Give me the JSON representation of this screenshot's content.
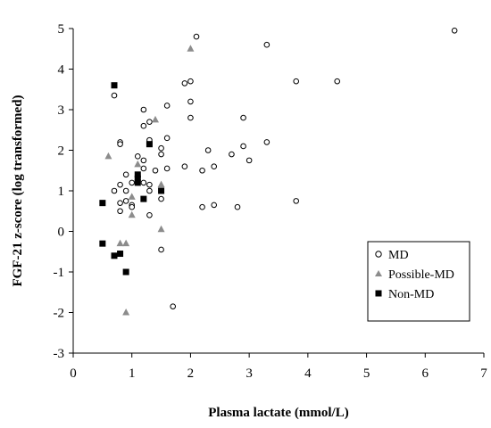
{
  "chart_data": {
    "type": "scatter",
    "xlabel": "Plasma lactate (mmol/L)",
    "ylabel": "FGF-21 z-score (log transformed)",
    "xlim": [
      0,
      7
    ],
    "ylim": [
      -3,
      5
    ],
    "x_ticks": [
      "0",
      "1",
      "2",
      "3",
      "4",
      "5",
      "6",
      "7"
    ],
    "y_ticks": [
      "-3",
      "-2",
      "-1",
      "0",
      "1",
      "2",
      "3",
      "4",
      "5"
    ],
    "grid": false,
    "legend_position": "bottom-right",
    "series": [
      {
        "name": "MD",
        "marker": "open-circle",
        "color": "#000000",
        "points": [
          [
            0.7,
            3.35
          ],
          [
            0.7,
            1.0
          ],
          [
            0.8,
            2.2
          ],
          [
            0.8,
            2.15
          ],
          [
            0.8,
            1.15
          ],
          [
            0.8,
            0.7
          ],
          [
            0.8,
            0.5
          ],
          [
            0.9,
            1.4
          ],
          [
            0.9,
            1.0
          ],
          [
            0.9,
            0.75
          ],
          [
            1.0,
            1.2
          ],
          [
            1.0,
            0.65
          ],
          [
            1.0,
            0.6
          ],
          [
            1.1,
            1.85
          ],
          [
            1.2,
            3.0
          ],
          [
            1.2,
            2.6
          ],
          [
            1.2,
            1.75
          ],
          [
            1.2,
            1.55
          ],
          [
            1.2,
            1.2
          ],
          [
            1.3,
            2.7
          ],
          [
            1.3,
            2.25
          ],
          [
            1.3,
            1.15
          ],
          [
            1.3,
            1.0
          ],
          [
            1.3,
            0.4
          ],
          [
            1.4,
            1.5
          ],
          [
            1.5,
            2.05
          ],
          [
            1.5,
            1.9
          ],
          [
            1.5,
            1.0
          ],
          [
            1.5,
            0.8
          ],
          [
            1.5,
            -0.45
          ],
          [
            1.6,
            3.1
          ],
          [
            1.6,
            2.3
          ],
          [
            1.6,
            1.55
          ],
          [
            1.7,
            -1.85
          ],
          [
            1.9,
            3.65
          ],
          [
            1.9,
            1.6
          ],
          [
            2.0,
            3.7
          ],
          [
            2.0,
            3.2
          ],
          [
            2.0,
            2.8
          ],
          [
            2.1,
            4.8
          ],
          [
            2.2,
            1.5
          ],
          [
            2.2,
            0.6
          ],
          [
            2.3,
            2.0
          ],
          [
            2.4,
            1.6
          ],
          [
            2.4,
            0.65
          ],
          [
            2.7,
            1.9
          ],
          [
            2.8,
            0.6
          ],
          [
            2.9,
            2.8
          ],
          [
            2.9,
            2.1
          ],
          [
            3.0,
            1.75
          ],
          [
            3.3,
            4.6
          ],
          [
            3.3,
            2.2
          ],
          [
            3.8,
            3.7
          ],
          [
            3.8,
            0.75
          ],
          [
            4.5,
            3.7
          ],
          [
            6.5,
            4.95
          ]
        ]
      },
      {
        "name": "Possible-MD",
        "marker": "filled-triangle",
        "color": "#8c8c8c",
        "points": [
          [
            0.6,
            1.85
          ],
          [
            0.8,
            -0.3
          ],
          [
            0.9,
            -0.3
          ],
          [
            0.9,
            -2.0
          ],
          [
            1.0,
            0.85
          ],
          [
            1.0,
            0.4
          ],
          [
            1.1,
            1.65
          ],
          [
            1.4,
            2.75
          ],
          [
            1.5,
            1.15
          ],
          [
            1.5,
            0.05
          ],
          [
            2.0,
            4.5
          ]
        ]
      },
      {
        "name": "Non-MD",
        "marker": "filled-square",
        "color": "#000000",
        "points": [
          [
            0.5,
            0.7
          ],
          [
            0.5,
            -0.3
          ],
          [
            0.7,
            3.6
          ],
          [
            0.7,
            -0.6
          ],
          [
            0.8,
            -0.55
          ],
          [
            0.9,
            -1.0
          ],
          [
            1.1,
            1.4
          ],
          [
            1.1,
            1.3
          ],
          [
            1.1,
            1.2
          ],
          [
            1.2,
            0.8
          ],
          [
            1.3,
            2.15
          ],
          [
            1.5,
            1.0
          ]
        ]
      }
    ]
  }
}
